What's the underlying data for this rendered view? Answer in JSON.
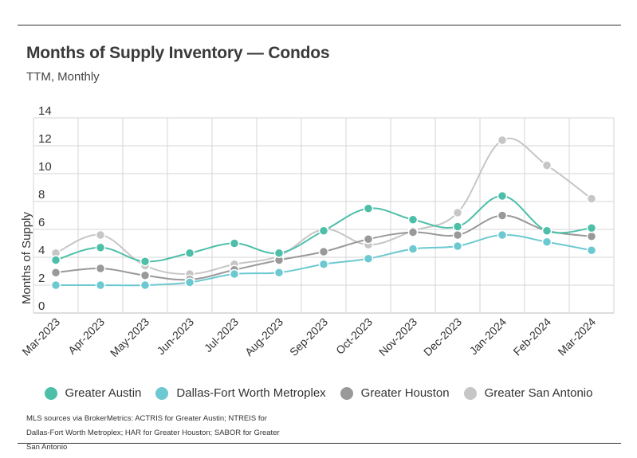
{
  "header": {
    "title": "Months of Supply Inventory — Condos",
    "subtitle": "TTM, Monthly"
  },
  "footer": {
    "source": "MLS sources via BrokerMetrics: ACTRIS for Greater Austin; NTREIS for Dallas-Fort Worth Metroplex; HAR for Greater Houston; SABOR for Greater San Antonio"
  },
  "chart_data": {
    "type": "line",
    "title": "Months of Supply Inventory — Condos",
    "subtitle": "TTM, Monthly",
    "ylabel": "Months of Supply",
    "xlabel": "",
    "ylim": [
      0,
      14
    ],
    "yticks": [
      0,
      2,
      4,
      6,
      8,
      10,
      12,
      14
    ],
    "grid": true,
    "legend": "bottom",
    "categories": [
      "Mar-2023",
      "Apr-2023",
      "May-2023",
      "Jun-2023",
      "Jul-2023",
      "Aug-2023",
      "Sep-2023",
      "Oct-2023",
      "Nov-2023",
      "Dec-2023",
      "Jan-2024",
      "Feb-2024",
      "Mar-2024"
    ],
    "series": [
      {
        "name": "Greater Austin",
        "color": "#4dbfa8",
        "values": [
          3.8,
          4.7,
          3.7,
          4.3,
          5.0,
          4.3,
          5.9,
          7.5,
          6.7,
          6.2,
          8.4,
          5.9,
          6.1
        ]
      },
      {
        "name": "Dallas-Fort Worth Metroplex",
        "color": "#6cc9d1",
        "values": [
          2.0,
          2.0,
          2.0,
          2.2,
          2.8,
          2.9,
          3.5,
          3.9,
          4.6,
          4.8,
          5.6,
          5.1,
          4.5
        ]
      },
      {
        "name": "Greater Houston",
        "color": "#999999",
        "values": [
          2.9,
          3.2,
          2.7,
          2.4,
          3.1,
          3.8,
          4.4,
          5.3,
          5.8,
          5.6,
          7.0,
          5.9,
          5.5
        ]
      },
      {
        "name": "Greater San Antonio",
        "color": "#c6c6c6",
        "values": [
          4.3,
          5.6,
          3.4,
          2.8,
          3.5,
          4.1,
          6.0,
          4.9,
          5.9,
          7.2,
          12.4,
          10.6,
          8.2
        ]
      }
    ]
  }
}
